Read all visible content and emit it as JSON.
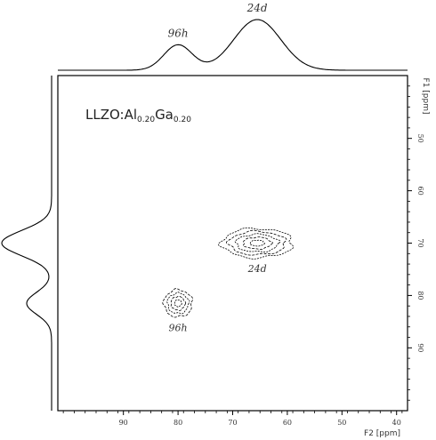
{
  "chart_data": {
    "type": "2d-nmr-contour",
    "sample_label": {
      "base": "LLZO:Al",
      "al_fraction": "0.20",
      "middle": "Ga",
      "ga_fraction": "0.20"
    },
    "x_axis": {
      "label": "F2 [ppm]",
      "range": [
        102,
        38
      ],
      "direction": "reversed",
      "ticks": [
        90,
        80,
        70,
        60,
        50,
        40
      ]
    },
    "y_axis": {
      "label": "F1 [ppm]",
      "range": [
        38,
        102
      ],
      "direction": "downward-increasing",
      "ticks": [
        50,
        60,
        70,
        80,
        90
      ]
    },
    "peaks": [
      {
        "label": "96h",
        "f2_ppm": 80.0,
        "f1_ppm": 81.5,
        "half_width_f2_ppm": 2.6,
        "half_width_f1_ppm": 2.6,
        "contour_levels": 4
      },
      {
        "label": "24d",
        "f2_ppm": 65.5,
        "f1_ppm": 70.0,
        "half_width_f2_ppm": 6.5,
        "half_width_f1_ppm": 2.8,
        "contour_levels": 5
      }
    ],
    "top_projection": {
      "peaks": [
        {
          "label": "96h",
          "center_ppm": 80.0,
          "relative_height": 0.5
        },
        {
          "label": "24d",
          "center_ppm": 65.5,
          "relative_height": 1.0
        }
      ]
    },
    "left_projection": {
      "peaks": [
        {
          "center_ppm": 70.0,
          "relative_height": 1.0
        },
        {
          "center_ppm": 81.5,
          "relative_height": 0.5
        }
      ]
    },
    "grid": false,
    "legend": "none"
  }
}
